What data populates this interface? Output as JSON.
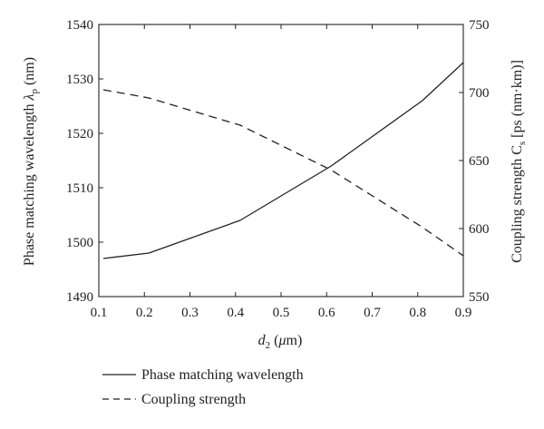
{
  "chart_data": {
    "type": "line",
    "x": [
      0.11,
      0.21,
      0.41,
      0.61,
      0.81,
      0.9
    ],
    "xlim": [
      0.1,
      0.9
    ],
    "xticks": [
      "0.1",
      "0.2",
      "0.3",
      "0.4",
      "0.5",
      "0.6",
      "0.7",
      "0.8",
      "0.9"
    ],
    "xlabel": {
      "italic_base": "d",
      "sub": "2",
      "rest": " (",
      "mu": "μ",
      "unit": "m)"
    },
    "ylabel_left": {
      "text": "Phase matching wavelength ",
      "symbol": "λ",
      "sub": "p",
      "unit": " (nm)"
    },
    "ylabel_right": {
      "text": "Coupling strength C",
      "sub": "s",
      "unit": " [ps (nm·km)]"
    },
    "ylim_left": [
      1490,
      1540
    ],
    "yticks_left": [
      "1490",
      "1500",
      "1510",
      "1520",
      "1530",
      "1540"
    ],
    "ylim_right": [
      550,
      750
    ],
    "yticks_right": [
      "550",
      "600",
      "650",
      "700",
      "750"
    ],
    "series": [
      {
        "name": "Phase matching wavelength",
        "axis": "left",
        "style": "solid",
        "x": [
          0.11,
          0.21,
          0.41,
          0.61,
          0.81,
          0.9
        ],
        "values": [
          1497,
          1498,
          1504,
          1514,
          1526,
          1533
        ]
      },
      {
        "name": "Coupling strength",
        "axis": "right",
        "style": "dashed",
        "x": [
          0.11,
          0.21,
          0.41,
          0.61,
          0.81,
          0.9
        ],
        "values": [
          702,
          696,
          676,
          643,
          601,
          580
        ]
      }
    ],
    "grid": false,
    "legend_position": "bottom"
  }
}
